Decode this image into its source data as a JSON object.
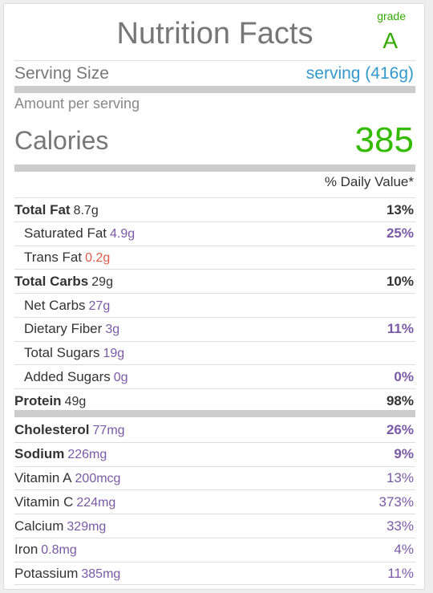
{
  "title": "Nutrition Facts",
  "grade": {
    "label": "grade",
    "value": "A"
  },
  "serving": {
    "label": "Serving Size",
    "value": "serving (416g)"
  },
  "amount_per_serving": "Amount per serving",
  "calories": {
    "label": "Calories",
    "value": "385"
  },
  "daily_value_header": "% Daily Value*",
  "colors": {
    "accent_blue": "#3399cc",
    "calories_green": "#33bb00",
    "amount_purple": "#7a5aa6",
    "warning_red": "#e05a4a",
    "label_gray": "#777777"
  },
  "nutrients": [
    {
      "label": "Total Fat",
      "amount": "8.7g",
      "pct": "13%",
      "bold": true,
      "sub": false,
      "amount_color": "#333333",
      "pct_color": "#333333"
    },
    {
      "label": "Saturated Fat",
      "amount": "4.9g",
      "pct": "25%",
      "bold": false,
      "sub": true,
      "amount_color": "#7a5aa6",
      "pct_color": "#7a5aa6",
      "pct_bold": true
    },
    {
      "label": "Trans Fat",
      "amount": "0.2g",
      "pct": "",
      "bold": false,
      "sub": true,
      "amount_color": "#e05a4a",
      "pct_color": "#333333"
    },
    {
      "label": "Total Carbs",
      "amount": "29g",
      "pct": "10%",
      "bold": true,
      "sub": false,
      "amount_color": "#333333",
      "pct_color": "#333333"
    },
    {
      "label": "Net Carbs",
      "amount": "27g",
      "pct": "",
      "bold": false,
      "sub": true,
      "amount_color": "#7a5aa6",
      "pct_color": "#333333"
    },
    {
      "label": "Dietary Fiber",
      "amount": "3g",
      "pct": "11%",
      "bold": false,
      "sub": true,
      "amount_color": "#7a5aa6",
      "pct_color": "#7a5aa6",
      "pct_bold": true
    },
    {
      "label": "Total Sugars",
      "amount": "19g",
      "pct": "",
      "bold": false,
      "sub": true,
      "amount_color": "#7a5aa6",
      "pct_color": "#333333"
    },
    {
      "label": "Added Sugars",
      "amount": "0g",
      "pct": "0%",
      "bold": false,
      "sub": true,
      "amount_color": "#7a5aa6",
      "pct_color": "#7a5aa6",
      "pct_bold": true
    },
    {
      "label": "Protein",
      "amount": "49g",
      "pct": "98%",
      "bold": true,
      "sub": false,
      "amount_color": "#333333",
      "pct_color": "#333333"
    }
  ],
  "minerals": [
    {
      "label": "Cholesterol",
      "amount": "77mg",
      "pct": "26%",
      "bold": true,
      "amount_color": "#7a5aa6",
      "pct_color": "#7a5aa6",
      "pct_bold": true
    },
    {
      "label": "Sodium",
      "amount": "226mg",
      "pct": "9%",
      "bold": true,
      "amount_color": "#7a5aa6",
      "pct_color": "#7a5aa6",
      "pct_bold": true
    },
    {
      "label": "Vitamin A",
      "amount": "200mcg",
      "pct": "13%",
      "bold": false,
      "amount_color": "#7a5aa6",
      "pct_color": "#7a5aa6",
      "pct_bold": false
    },
    {
      "label": "Vitamin C",
      "amount": "224mg",
      "pct": "373%",
      "bold": false,
      "amount_color": "#7a5aa6",
      "pct_color": "#7a5aa6",
      "pct_bold": false
    },
    {
      "label": "Calcium",
      "amount": "329mg",
      "pct": "33%",
      "bold": false,
      "amount_color": "#7a5aa6",
      "pct_color": "#7a5aa6",
      "pct_bold": false
    },
    {
      "label": "Iron",
      "amount": "0.8mg",
      "pct": "4%",
      "bold": false,
      "amount_color": "#7a5aa6",
      "pct_color": "#7a5aa6",
      "pct_bold": false
    },
    {
      "label": "Potassium",
      "amount": "385mg",
      "pct": "11%",
      "bold": false,
      "amount_color": "#7a5aa6",
      "pct_color": "#7a5aa6",
      "pct_bold": false
    }
  ]
}
